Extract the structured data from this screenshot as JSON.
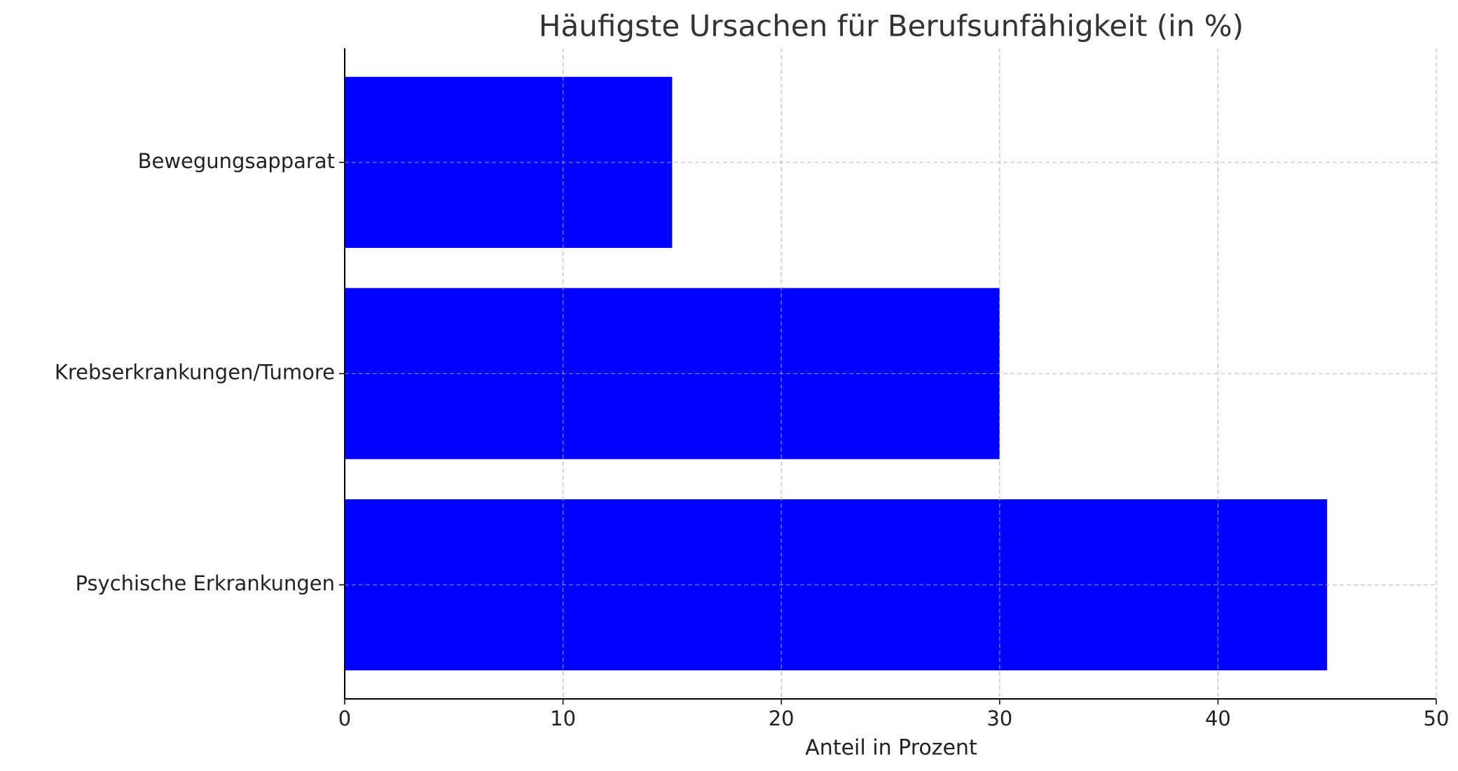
{
  "chart_data": {
    "type": "barh",
    "title": "Häufigste Ursachen für Berufsunfähigkeit (in %)",
    "categories": [
      "Psychische Erkrankungen",
      "Krebserkrankungen/Tumore",
      "Bewegungsapparat"
    ],
    "values": [
      45,
      30,
      15
    ],
    "color": "#0000ff",
    "xlabel": "Anteil in Prozent",
    "xlim": [
      0,
      50
    ],
    "xticks": [
      0,
      10,
      20,
      30,
      40,
      50
    ],
    "grid": true
  }
}
